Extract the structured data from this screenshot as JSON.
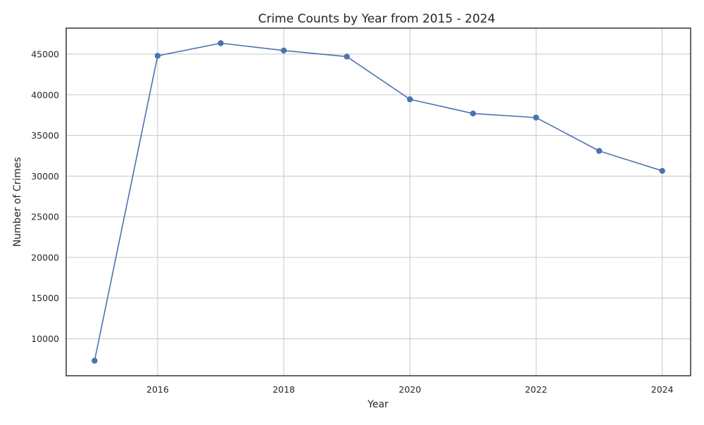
{
  "chart_data": {
    "type": "line",
    "title": "Crime Counts by Year from 2015 - 2024",
    "xlabel": "Year",
    "ylabel": "Number of Crimes",
    "x": [
      2015,
      2016,
      2017,
      2018,
      2019,
      2020,
      2021,
      2022,
      2023,
      2024
    ],
    "series": [
      {
        "values": [
          7300,
          44800,
          46350,
          45450,
          44700,
          39450,
          37700,
          37200,
          33100,
          30650
        ],
        "color": "#4c72b0",
        "marker": "circle"
      }
    ],
    "xlim": [
      2014.55,
      2024.45
    ],
    "ylim": [
      5450,
      48200
    ],
    "xticks": [
      2016,
      2018,
      2020,
      2022,
      2024
    ],
    "yticks": [
      10000,
      15000,
      20000,
      25000,
      30000,
      35000,
      40000,
      45000
    ],
    "grid": true,
    "grid_color": "#cccccc",
    "axes_color": "#262626"
  }
}
